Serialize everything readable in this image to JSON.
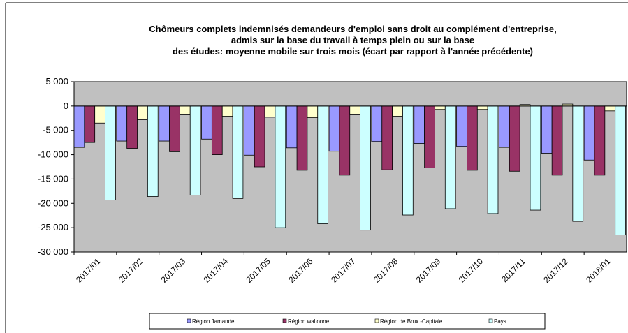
{
  "chart_data": {
    "type": "bar",
    "title": "Chômeurs complets indemnisés demandeurs d'emploi sans droit au complément d'entreprise, admis sur la base du travail à temps plein ou sur la base des études: moyenne mobile sur trois mois (écart par rapport à l'année précédente)",
    "categories": [
      "2017/01",
      "2017/02",
      "2017/03",
      "2017/04",
      "2017/05",
      "2017/06",
      "2017/07",
      "2017/08",
      "2017/09",
      "2017/10",
      "2017/11",
      "2017/12",
      "2018/01"
    ],
    "series": [
      {
        "name": "Région flamande",
        "color": "#9999ff",
        "values": [
          -8500,
          -7200,
          -7200,
          -6800,
          -10100,
          -8600,
          -9300,
          -7300,
          -7700,
          -8300,
          -8500,
          -9700,
          -11100
        ]
      },
      {
        "name": "Région wallonne",
        "color": "#993366",
        "values": [
          -7500,
          -8700,
          -9400,
          -10000,
          -12500,
          -13200,
          -14200,
          -13100,
          -12700,
          -13200,
          -13400,
          -14200,
          -14200
        ]
      },
      {
        "name": "Région de Brux.-Capitale",
        "color": "#ffffcc",
        "values": [
          -3500,
          -2800,
          -1800,
          -2100,
          -2300,
          -2400,
          -1800,
          -2100,
          -700,
          -700,
          300,
          400,
          -1000
        ]
      },
      {
        "name": "Pays",
        "color": "#ccffff",
        "values": [
          -19300,
          -18600,
          -18300,
          -19000,
          -25000,
          -24200,
          -25500,
          -22400,
          -21100,
          -22100,
          -21400,
          -23700,
          -26500
        ]
      }
    ],
    "ylim": [
      -30000,
      5000
    ],
    "yticks": [
      {
        "value": 5000,
        "label": "5 000"
      },
      0,
      {
        "value": -5000,
        "label": "-5 000"
      },
      {
        "value": -10000,
        "label": "-10 000"
      },
      {
        "value": -15000,
        "label": "-15 000"
      },
      {
        "value": -20000,
        "label": "-20 000"
      },
      {
        "value": -25000,
        "label": "-25 000"
      },
      {
        "value": -30000,
        "label": "-30 000"
      }
    ],
    "plot_background": "#c0c0c0"
  }
}
